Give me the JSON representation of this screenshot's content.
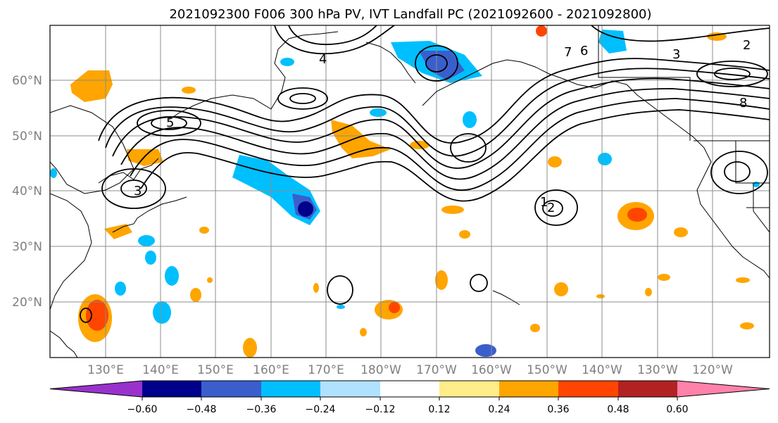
{
  "title": "2021092300 F006 300 hPa PV, IVT Landfall PC (2021092600 - 2021092800)",
  "map": {
    "lat_labels": [
      "60°N",
      "50°N",
      "40°N",
      "30°N",
      "20°N"
    ],
    "lon_labels": [
      "130°E",
      "140°E",
      "150°E",
      "160°E",
      "170°E",
      "180°W",
      "170°W",
      "160°W",
      "150°W",
      "140°W",
      "130°W",
      "120°W"
    ],
    "contour_labels": [
      "3",
      "1",
      "2",
      "5",
      "4",
      "8",
      "7",
      "6",
      "3",
      "2"
    ]
  },
  "colorbar": {
    "ticks": [
      "−0.60",
      "−0.48",
      "−0.36",
      "−0.24",
      "−0.12",
      "0.12",
      "0.24",
      "0.36",
      "0.48",
      "0.60"
    ],
    "colors": [
      "#9932cc",
      "#00008b",
      "#3a5fcd",
      "#00bfff",
      "#b0e2ff",
      "#ffffff",
      "#ffec8b",
      "#ffa500",
      "#ff4500",
      "#b22222",
      "#ff82ab"
    ]
  }
}
